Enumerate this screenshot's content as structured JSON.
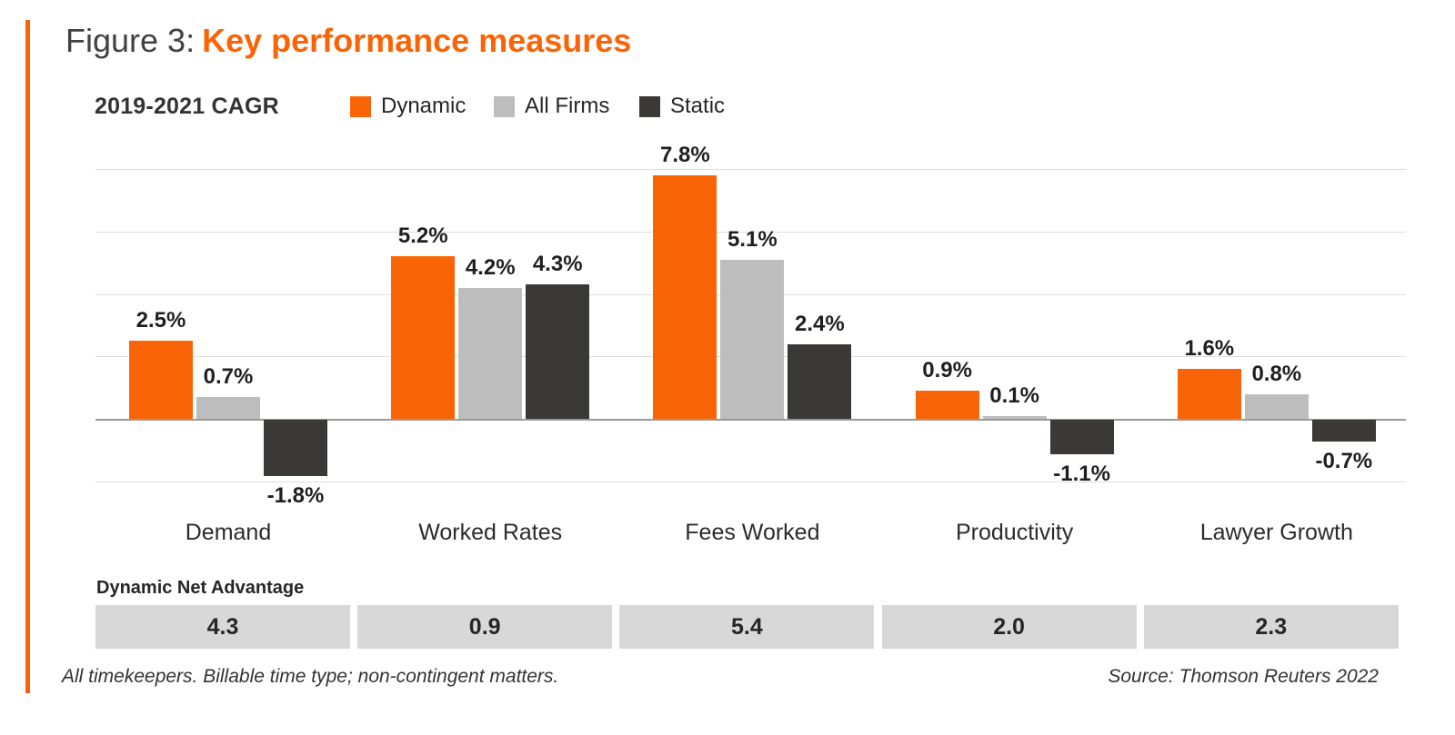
{
  "figure": {
    "label": "Figure 3:",
    "title": "Key performance measures"
  },
  "legend": {
    "axis_label": "2019-2021 CAGR",
    "items": [
      {
        "name": "Dynamic",
        "color": "#F96506"
      },
      {
        "name": "All Firms",
        "color": "#BDBDBD"
      },
      {
        "name": "Static",
        "color": "#3B3838"
      }
    ]
  },
  "chart_data": {
    "type": "bar",
    "title": "2019-2021 CAGR",
    "categories": [
      "Demand",
      "Worked Rates",
      "Fees Worked",
      "Productivity",
      "Lawyer Growth"
    ],
    "series": [
      {
        "name": "Dynamic",
        "color": "#F96506",
        "values": [
          2.5,
          5.2,
          7.8,
          0.9,
          1.6
        ]
      },
      {
        "name": "All Firms",
        "color": "#BDBDBD",
        "values": [
          0.7,
          4.2,
          5.1,
          0.1,
          0.8
        ]
      },
      {
        "name": "Static",
        "color": "#3B3838",
        "values": [
          -1.8,
          4.3,
          2.4,
          -1.1,
          -0.7
        ]
      }
    ],
    "value_suffix": "%",
    "ylim": [
      -2,
      8
    ],
    "gridline_values": [
      8,
      6,
      4,
      2,
      0,
      -2
    ],
    "grid": true,
    "legend_position": "top"
  },
  "net_advantage": {
    "label": "Dynamic Net Advantage",
    "values": [
      "4.3",
      "0.9",
      "5.4",
      "2.0",
      "2.3"
    ]
  },
  "footer": {
    "note": "All timekeepers. Billable time type; non-contingent matters.",
    "source": "Source: Thomson Reuters 2022"
  },
  "colors": {
    "accent": "#F96506",
    "gridline": "#DDDDDD",
    "zero_line": "#999999",
    "net_box_bg": "#D8D8D8",
    "title_gray": "#414141",
    "text_dark": "#1F1F1F"
  }
}
